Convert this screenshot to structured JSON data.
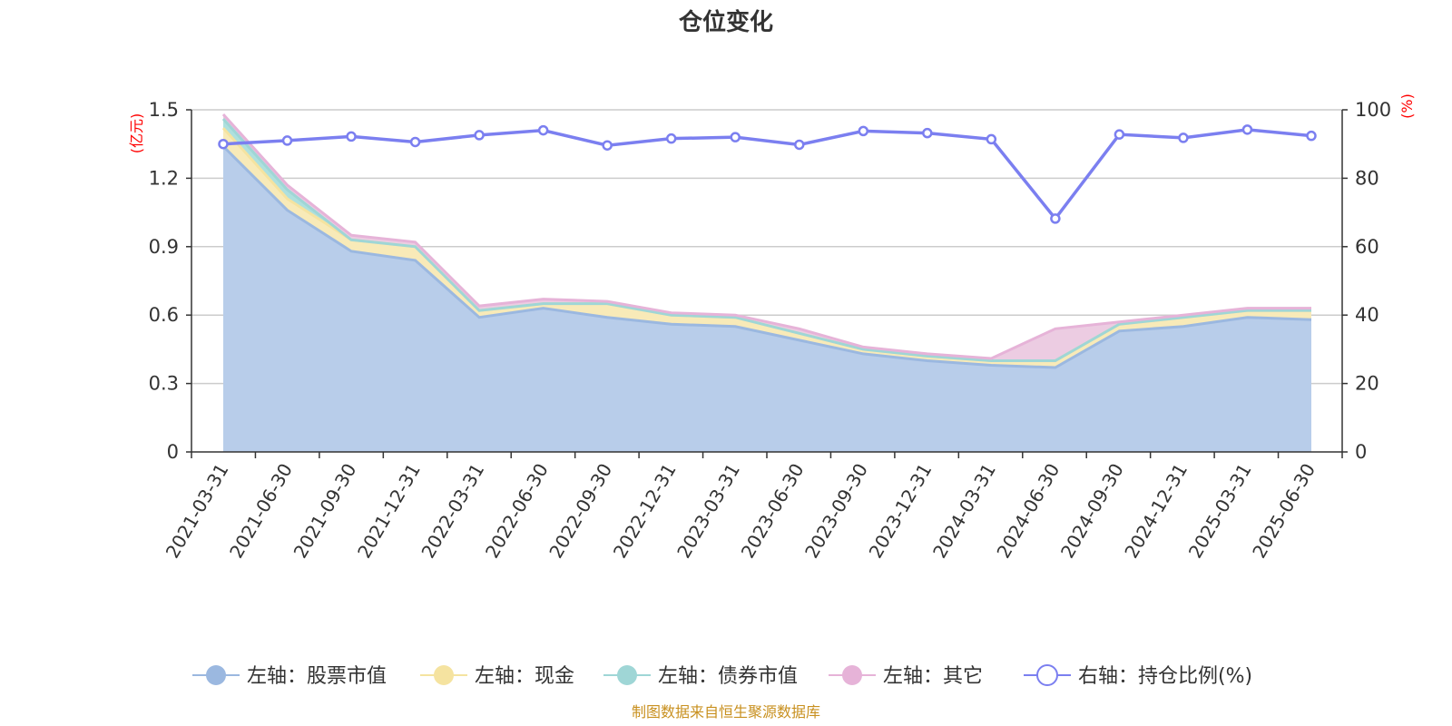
{
  "chart_data": {
    "type": "area",
    "title": "仓位变化",
    "left_axis_unit": "(亿元)",
    "right_axis_unit": "(%)",
    "x": [
      "2021-03-31",
      "2021-06-30",
      "2021-09-30",
      "2021-12-31",
      "2022-03-31",
      "2022-06-30",
      "2022-09-30",
      "2022-12-31",
      "2023-03-31",
      "2023-06-30",
      "2023-09-30",
      "2023-12-31",
      "2024-03-31",
      "2024-06-30",
      "2024-09-30",
      "2024-12-31",
      "2025-03-31",
      "2025-06-30"
    ],
    "ylim_left": [
      0,
      1.5
    ],
    "yticks_left": [
      "0",
      "0.3",
      "0.6",
      "0.9",
      "1.2",
      "1.5"
    ],
    "ylim_right": [
      0,
      100
    ],
    "yticks_right": [
      "0",
      "20",
      "40",
      "60",
      "80",
      "100"
    ],
    "grid": true,
    "legend_position": "bottom",
    "stacked": true,
    "series": [
      {
        "name": "左轴：股票市值",
        "axis": "left",
        "kind": "area",
        "color": "#9bb8e0",
        "fill": "#b8cdea",
        "values": [
          1.34,
          1.06,
          0.88,
          0.84,
          0.59,
          0.63,
          0.59,
          0.56,
          0.55,
          0.49,
          0.43,
          0.4,
          0.38,
          0.37,
          0.53,
          0.55,
          0.59,
          0.58
        ]
      },
      {
        "name": "左轴：现金",
        "axis": "left",
        "kind": "area",
        "color": "#f5e3a0",
        "fill": "#f8eab8",
        "values": [
          0.08,
          0.05,
          0.05,
          0.06,
          0.03,
          0.02,
          0.06,
          0.04,
          0.04,
          0.03,
          0.02,
          0.02,
          0.02,
          0.03,
          0.03,
          0.04,
          0.03,
          0.04
        ]
      },
      {
        "name": "左轴：债券市值",
        "axis": "left",
        "kind": "area",
        "color": "#9fd6d6",
        "fill": "#aee0de",
        "values": [
          0.04,
          0.04,
          0.0,
          0.0,
          0.0,
          0.0,
          0.0,
          0.0,
          0.0,
          0.0,
          0.0,
          0.0,
          0.0,
          0.0,
          0.0,
          0.0,
          0.0,
          0.0
        ]
      },
      {
        "name": "左轴：其它",
        "axis": "left",
        "kind": "area",
        "color": "#e6b3d8",
        "fill": "#eccce2",
        "values": [
          0.02,
          0.02,
          0.02,
          0.02,
          0.02,
          0.02,
          0.01,
          0.01,
          0.01,
          0.02,
          0.01,
          0.01,
          0.01,
          0.14,
          0.01,
          0.01,
          0.01,
          0.01
        ]
      },
      {
        "name": "右轴：持仓比例(%)",
        "axis": "right",
        "kind": "line",
        "color": "#7b7ff0",
        "values": [
          90.0,
          91.0,
          92.2,
          90.6,
          92.6,
          94.0,
          89.6,
          91.6,
          92.0,
          89.8,
          93.8,
          93.2,
          91.4,
          68.2,
          92.8,
          91.8,
          94.2,
          92.4
        ]
      }
    ],
    "source": "制图数据来自恒生聚源数据库"
  }
}
